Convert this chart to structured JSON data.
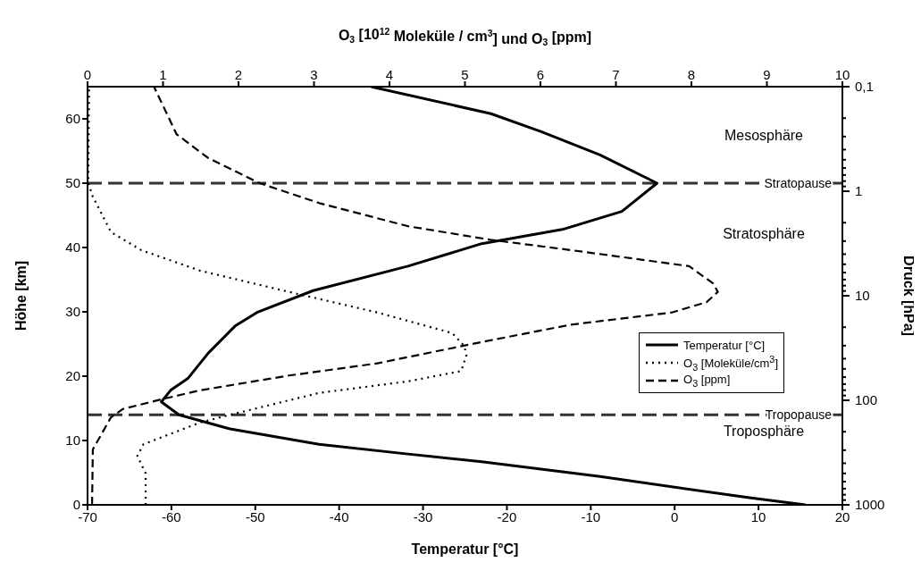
{
  "chart_data": {
    "type": "line",
    "xlabel": "Temperatur [°C]",
    "x2label": "O$_{3}$ [10$^{12}$ Moleküle / cm$^{3}$] und O$_{3}$ [ppm]",
    "ylabel": "Höhe [km]",
    "y2label": "Druck [hPa]",
    "xlim": [
      -70,
      20
    ],
    "xticks": [
      -70,
      -60,
      -50,
      -40,
      -30,
      -20,
      -10,
      0,
      10,
      20
    ],
    "x2lim": [
      0,
      10
    ],
    "x2ticks": [
      0,
      1,
      2,
      3,
      4,
      5,
      6,
      7,
      8,
      9,
      10
    ],
    "ylim": [
      0,
      65
    ],
    "yticks": [
      0,
      10,
      20,
      30,
      40,
      50,
      60
    ],
    "y2lim": [
      1000,
      0.1
    ],
    "log": "y2",
    "y2ticks": [
      {
        "value": 0.1,
        "label": "0,1"
      },
      {
        "value": 0.2,
        "label": null
      },
      {
        "value": 0.3,
        "label": null
      },
      {
        "value": 0.4,
        "label": null
      },
      {
        "value": 0.5,
        "label": null
      },
      {
        "value": 0.6,
        "label": null
      },
      {
        "value": 0.7,
        "label": null
      },
      {
        "value": 0.8,
        "label": null
      },
      {
        "value": 0.9,
        "label": null
      },
      1,
      {
        "value": 2,
        "label": null
      },
      {
        "value": 3,
        "label": null
      },
      {
        "value": 4,
        "label": null
      },
      {
        "value": 5,
        "label": null
      },
      {
        "value": 6,
        "label": null
      },
      {
        "value": 7,
        "label": null
      },
      {
        "value": 8,
        "label": null
      },
      {
        "value": 9,
        "label": null
      },
      10,
      {
        "value": 20,
        "label": null
      },
      {
        "value": 30,
        "label": null
      },
      {
        "value": 40,
        "label": null
      },
      {
        "value": 50,
        "label": null
      },
      {
        "value": 60,
        "label": null
      },
      {
        "value": 70,
        "label": null
      },
      {
        "value": 80,
        "label": null
      },
      {
        "value": 90,
        "label": null
      },
      100,
      {
        "value": 200,
        "label": null
      },
      {
        "value": 300,
        "label": null
      },
      {
        "value": 400,
        "label": null
      },
      {
        "value": 500,
        "label": null
      },
      {
        "value": 600,
        "label": null
      },
      {
        "value": 700,
        "label": null
      },
      {
        "value": 800,
        "label": null
      },
      {
        "value": 900,
        "label": null
      },
      1000
    ],
    "grid": false,
    "legend": "right",
    "marker": "none",
    "series": [
      {
        "name": "Temperatur [°C]",
        "color": "#000000",
        "line_style": "solid",
        "x": [
          15.6,
          8.9,
          -8.9,
          -23,
          -31.8,
          -42.4,
          -53,
          -59.1,
          -61.2,
          -60.1,
          -58,
          -55.6,
          -52.4,
          -49.8,
          -43.1,
          -31.8,
          -23,
          -13.4,
          -6.3,
          -2.1,
          -8.9,
          -15.9,
          -21.9,
          -36.2
        ],
        "values": [
          0,
          1.1,
          4.4,
          6.7,
          7.9,
          9.4,
          11.8,
          14,
          16,
          17.8,
          19.7,
          23.6,
          27.8,
          29.9,
          33.3,
          37.1,
          40.6,
          42.8,
          45.6,
          50,
          54.4,
          58,
          60.8,
          65
        ]
      },
      {
        "name": "O$_{3}$ [Moleküle/cm$^{3}$]",
        "color": "#000000",
        "line_style": "dotted",
        "axis": "x2",
        "x": [
          0.77,
          0.77,
          0.66,
          0.74,
          1.49,
          1.96,
          3.07,
          4.25,
          4.95,
          5.02,
          4.99,
          4.83,
          3.84,
          2.67,
          1.49,
          0.71,
          0.31,
          0.07,
          0.01,
          0.02
        ],
        "values": [
          0,
          4.9,
          7.6,
          9.4,
          12.8,
          14.2,
          17.4,
          19.2,
          20.8,
          23.3,
          24.7,
          26.7,
          29.9,
          33.1,
          36.4,
          39.6,
          42.4,
          47.9,
          50,
          65
        ]
      },
      {
        "name": "O$_{3}$ [ppm]",
        "color": "#000000",
        "line_style": "dashed",
        "axis": "x2",
        "x": [
          0.06,
          0.07,
          0.31,
          0.47,
          0.98,
          1.49,
          2.67,
          3.84,
          5.22,
          6.4,
          7.74,
          8.2,
          8.35,
          8.29,
          7.97,
          6.4,
          5.34,
          4.25,
          3.07,
          2.28,
          1.6,
          1.18,
          0.88
        ],
        "values": [
          0,
          8.6,
          13.6,
          14.9,
          16.4,
          17.8,
          20.1,
          22,
          25.3,
          28,
          29.9,
          31.5,
          33.1,
          34.4,
          37.1,
          39.6,
          41.2,
          43.3,
          46.9,
          50,
          53.9,
          57.6,
          65
        ]
      }
    ],
    "ref_lines": [
      {
        "axis": "y",
        "value": 50,
        "label": "Stratopause",
        "color": "#333333",
        "line_style": "dashed"
      },
      {
        "axis": "y",
        "value": 14,
        "label": "Tropopause",
        "color": "#333333",
        "line_style": "dashed"
      }
    ],
    "annotations": [
      "Mesosphäre",
      "Stratosphäre",
      "Troposphäre"
    ]
  }
}
